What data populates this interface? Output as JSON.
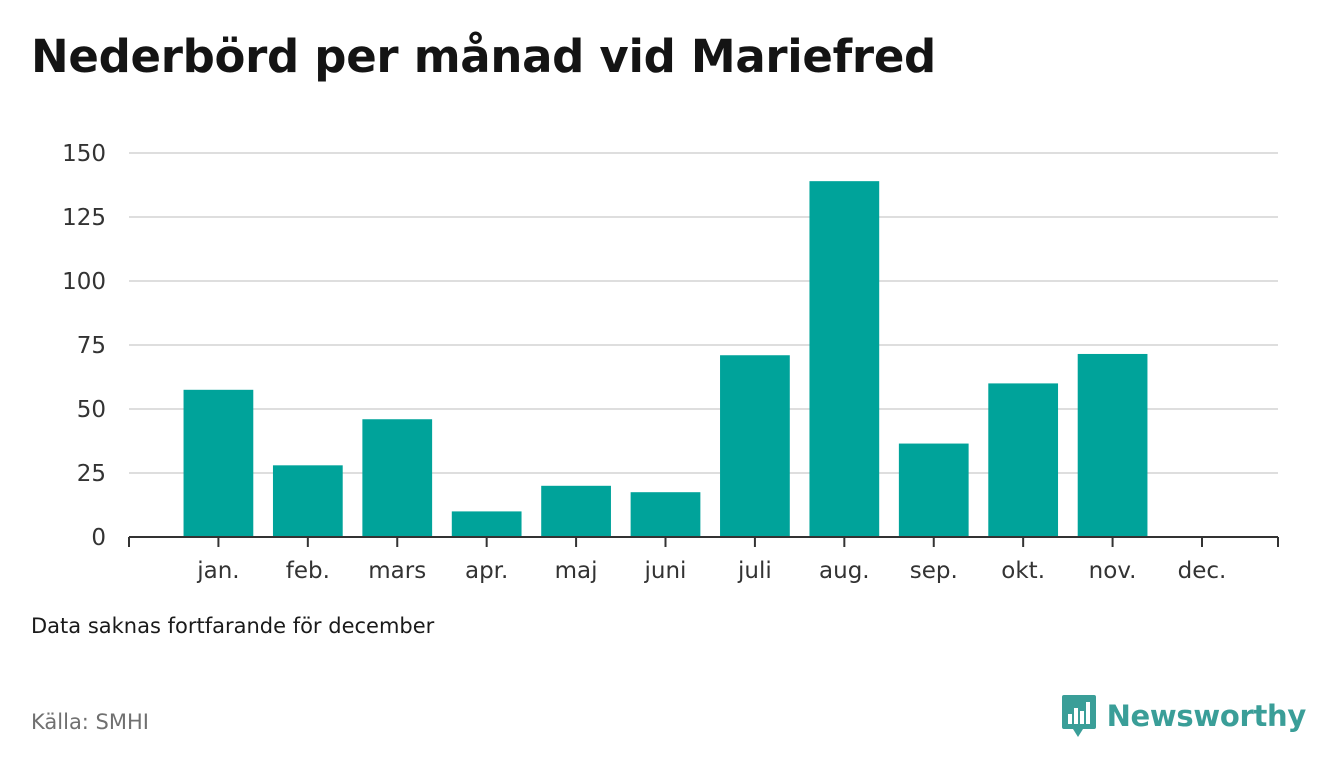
{
  "title": "Nederbörd per månad vid Mariefred",
  "note": "Data saknas fortfarande för december",
  "source": "Källa: SMHI",
  "brand": {
    "name": "Newsworthy",
    "icon": "newsworthy-logo-icon",
    "color": "#3a9e98"
  },
  "colors": {
    "bar": "#00a39a",
    "grid": "#dedede",
    "axis": "#333333"
  },
  "chart_data": {
    "type": "bar",
    "categories": [
      "jan.",
      "feb.",
      "mars",
      "apr.",
      "maj",
      "juni",
      "juli",
      "aug.",
      "sep.",
      "okt.",
      "nov.",
      "dec."
    ],
    "values": [
      57.5,
      28,
      46,
      10,
      20,
      17.5,
      71,
      139,
      36.5,
      60,
      71.5,
      null
    ],
    "yticks": [
      0,
      25,
      50,
      75,
      100,
      125,
      150
    ],
    "ylim": [
      0,
      150
    ],
    "grid": true,
    "legend": "none"
  }
}
